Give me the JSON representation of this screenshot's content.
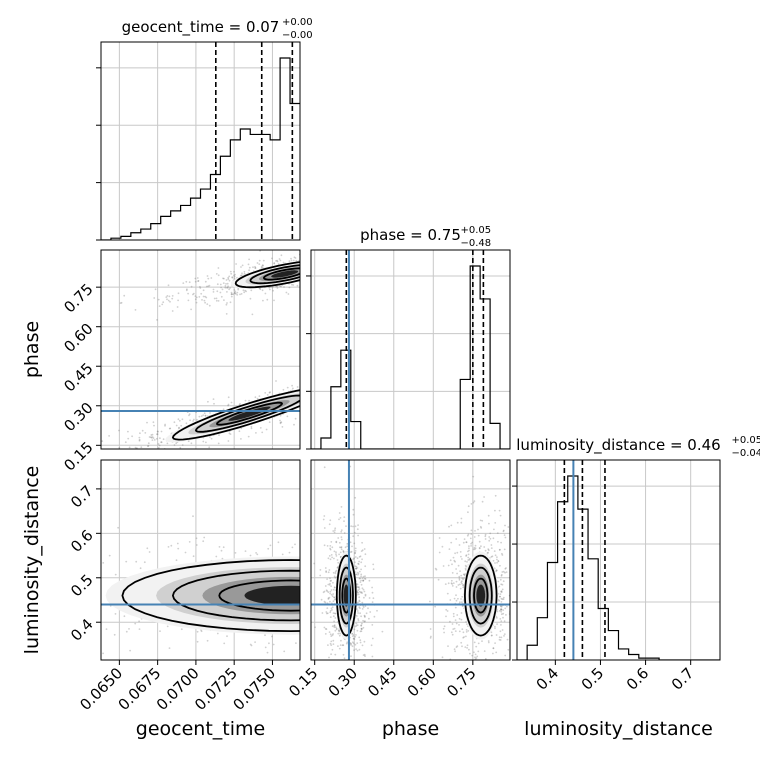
{
  "chart_data": {
    "type": "corner",
    "parameters": [
      "geocent_time",
      "phase",
      "luminosity_distance"
    ],
    "axis_labels": {
      "geocent_time": "geocent_time",
      "phase": "phase",
      "luminosity_distance": "luminosity_distance"
    },
    "titles": [
      {
        "param": "geocent_time",
        "name": "geocent_time",
        "value": "0.07",
        "plus": "+0.00",
        "minus": "−0.00"
      },
      {
        "param": "phase",
        "name": "phase",
        "value": "0.75",
        "plus": "+0.05",
        "minus": "−0.48"
      },
      {
        "param": "luminosity_distance",
        "name": "luminosity_distance",
        "value": "0.46",
        "plus": "+0.05",
        "minus": "−0.04"
      }
    ],
    "ranges": {
      "geocent_time": [
        0.0638,
        0.0768
      ],
      "phase": [
        0.136,
        0.891
      ],
      "luminosity_distance": [
        0.315,
        0.765
      ]
    },
    "ticks": {
      "geocent_time": [
        "0.0650",
        "0.0675",
        "0.0700",
        "0.0725",
        "0.0750"
      ],
      "phase": [
        "0.15",
        "0.30",
        "0.45",
        "0.60",
        "0.75"
      ],
      "luminosity_distance": [
        "0.4",
        "0.5",
        "0.6",
        "0.7"
      ]
    },
    "tick_values": {
      "geocent_time": [
        0.065,
        0.0675,
        0.07,
        0.0725,
        0.075
      ],
      "phase": [
        0.15,
        0.3,
        0.45,
        0.6,
        0.75
      ],
      "luminosity_distance": [
        0.4,
        0.5,
        0.6,
        0.7
      ]
    },
    "truths": {
      "geocent_time": null,
      "phase": 0.28,
      "luminosity_distance": 0.44
    },
    "truth_color": "#4682b4",
    "quantiles": {
      "geocent_time": [
        0.0713,
        0.0743,
        0.0763
      ],
      "phase": [
        0.27,
        0.75,
        0.79
      ],
      "luminosity_distance": [
        0.42,
        0.46,
        0.51
      ]
    },
    "histograms": {
      "geocent_time": {
        "bin_start": 0.0638,
        "bin_width": 0.00065,
        "counts": [
          0.0,
          0.01,
          0.02,
          0.04,
          0.06,
          0.09,
          0.13,
          0.16,
          0.19,
          0.23,
          0.28,
          0.36,
          0.46,
          0.55,
          0.61,
          0.58,
          0.58,
          0.55,
          1.0,
          0.75
        ]
      },
      "phase": {
        "bin_start": 0.136,
        "bin_width": 0.03775,
        "counts": [
          0.0,
          0.06,
          0.34,
          0.54,
          0.15,
          0.0,
          0.0,
          0.0,
          0.0,
          0.0,
          0.0,
          0.0,
          0.0,
          0.0,
          0.0,
          0.38,
          1.0,
          0.82,
          0.14,
          0.0
        ]
      },
      "luminosity_distance": {
        "bin_start": 0.315,
        "bin_width": 0.0225,
        "counts": [
          0.0,
          0.08,
          0.23,
          0.53,
          0.86,
          1.0,
          0.82,
          0.55,
          0.28,
          0.16,
          0.06,
          0.03,
          0.01,
          0.01,
          0.0,
          0.0,
          0.0,
          0.0,
          0.0,
          0.0
        ]
      }
    },
    "contour_regions": [
      {
        "x": "geocent_time",
        "y": "phase",
        "cx": 0.0758,
        "cy": 0.8,
        "sx": 0.0016,
        "sy": 0.018,
        "slope": 11
      },
      {
        "x": "geocent_time",
        "y": "phase",
        "cx": 0.0735,
        "cy": 0.27,
        "sx": 0.0025,
        "sy": 0.02,
        "slope": 18
      },
      {
        "x": "geocent_time",
        "y": "luminosity_distance",
        "cx": 0.0762,
        "cy": 0.46,
        "sx": 0.0055,
        "sy": 0.04,
        "slope": 0
      },
      {
        "x": "phase",
        "y": "luminosity_distance",
        "cx": 0.27,
        "cy": 0.46,
        "sx": 0.018,
        "sy": 0.045,
        "slope": 0
      },
      {
        "x": "phase",
        "y": "luminosity_distance",
        "cx": 0.78,
        "cy": 0.46,
        "sx": 0.03,
        "sy": 0.045,
        "slope": 0
      }
    ],
    "grid": true
  }
}
